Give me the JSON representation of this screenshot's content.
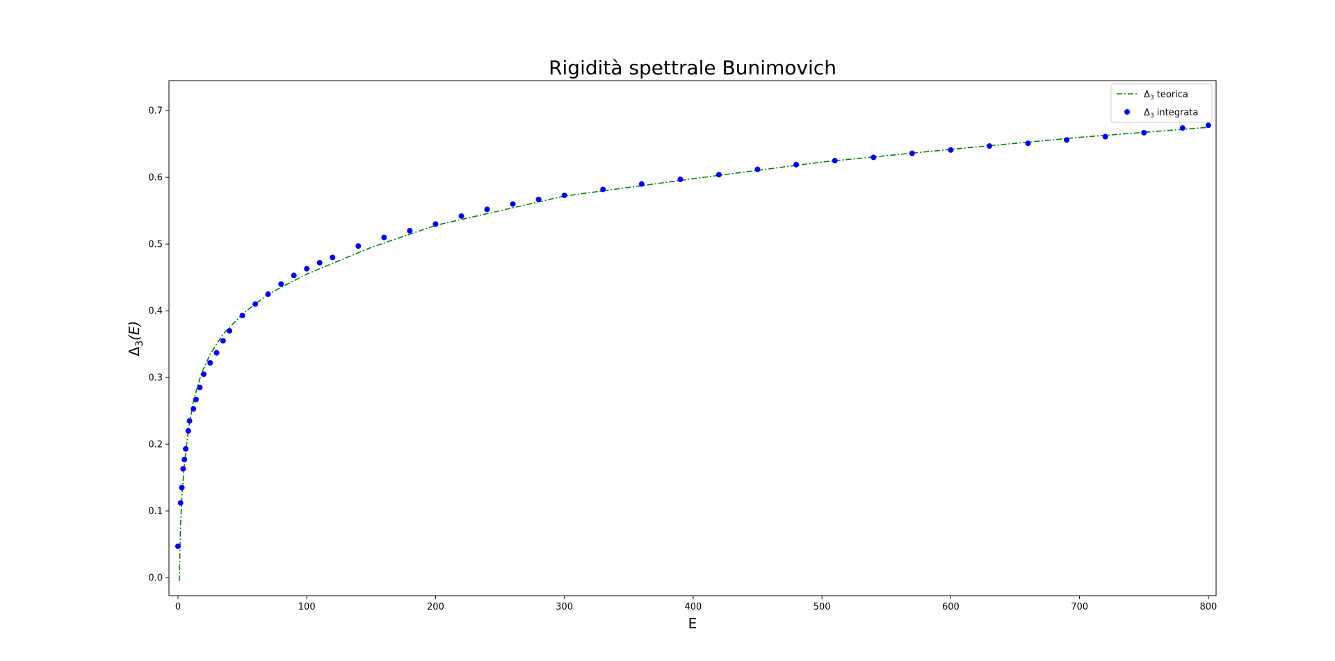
{
  "chart_data": {
    "type": "scatter",
    "title": "Rigidità spettrale Bunimovich",
    "xlabel": "E",
    "ylabel": "Δ3(E)",
    "xlim": [
      -7,
      806
    ],
    "ylim": [
      -0.027,
      0.745
    ],
    "x_ticks": [
      0,
      100,
      200,
      300,
      400,
      500,
      600,
      700,
      800
    ],
    "y_ticks": [
      0.0,
      0.1,
      0.2,
      0.3,
      0.4,
      0.5,
      0.6,
      0.7
    ],
    "y_tick_labels": [
      "0.0",
      "0.1",
      "0.2",
      "0.3",
      "0.4",
      "0.5",
      "0.6",
      "0.7"
    ],
    "grid": false,
    "legend_position": "top-right",
    "colors": {
      "theory": "#008000",
      "integrated": "#0000ff"
    },
    "series": [
      {
        "name": "Δ3 teorica",
        "kind": "line",
        "style": "dash-dot",
        "x": [
          1,
          2,
          3,
          5,
          8,
          12,
          18,
          25,
          35,
          50,
          70,
          100,
          150,
          200,
          300,
          400,
          500,
          600,
          700,
          800
        ],
        "y": [
          -0.005,
          0.08,
          0.12,
          0.17,
          0.22,
          0.265,
          0.305,
          0.335,
          0.365,
          0.395,
          0.425,
          0.455,
          0.495,
          0.528,
          0.572,
          0.598,
          0.623,
          0.642,
          0.66,
          0.675
        ]
      },
      {
        "name": "Δ3 integrata",
        "kind": "scatter",
        "x": [
          0,
          2,
          3,
          4,
          5,
          6,
          8,
          9,
          12,
          14,
          17,
          20,
          25,
          30,
          35,
          40,
          50,
          60,
          70,
          80,
          90,
          100,
          110,
          120,
          140,
          160,
          180,
          200,
          220,
          240,
          260,
          280,
          300,
          330,
          360,
          390,
          420,
          450,
          480,
          510,
          540,
          570,
          600,
          630,
          660,
          690,
          720,
          750,
          780,
          800
        ],
        "y": [
          0.047,
          0.112,
          0.135,
          0.163,
          0.177,
          0.193,
          0.22,
          0.235,
          0.253,
          0.267,
          0.285,
          0.305,
          0.322,
          0.337,
          0.355,
          0.37,
          0.393,
          0.41,
          0.425,
          0.44,
          0.453,
          0.463,
          0.472,
          0.48,
          0.497,
          0.51,
          0.52,
          0.53,
          0.542,
          0.552,
          0.56,
          0.567,
          0.573,
          0.582,
          0.59,
          0.597,
          0.604,
          0.612,
          0.619,
          0.625,
          0.63,
          0.636,
          0.641,
          0.647,
          0.651,
          0.656,
          0.661,
          0.667,
          0.674,
          0.678
        ]
      }
    ]
  }
}
